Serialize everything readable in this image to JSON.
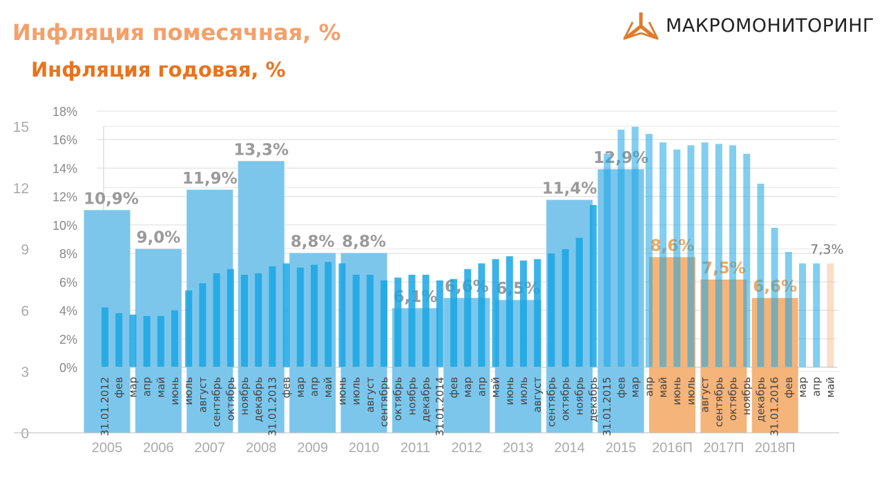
{
  "logo": {
    "text": "МАКРОМОНИТОРИНГ",
    "color": "#e07b2a"
  },
  "titles": {
    "annual": "Инфляция годовая, %",
    "monthly": "Инфляция помесячная, %"
  },
  "colors": {
    "actual": "#7cc6ec",
    "forecast": "#f5b47a",
    "monthly": "#1aa6e4",
    "monthly_forecast": "#f7c39a",
    "label": "#9a9a9a",
    "forecast_label": "#f0a860"
  },
  "chart_data": [
    {
      "type": "bar",
      "title": "Инфляция годовая, %",
      "ylim": [
        0,
        15
      ],
      "yticks": [
        "0",
        "3",
        "6",
        "9",
        "12",
        "15"
      ],
      "grid": true,
      "categories": [
        "2005",
        "2006",
        "2007",
        "2008",
        "2009",
        "2010",
        "2011",
        "2012",
        "2013",
        "2014",
        "2015",
        "2016П",
        "2017П",
        "2018П"
      ],
      "values": [
        10.9,
        9.0,
        11.9,
        13.3,
        8.8,
        8.8,
        6.1,
        6.6,
        6.5,
        11.4,
        12.9,
        8.6,
        7.5,
        6.6
      ],
      "labels": [
        "10,9%",
        "9,0%",
        "11,9%",
        "13,3%",
        "8,8%",
        "8,8%",
        "6,1%",
        "6,6%",
        "6,5%",
        "11,4%",
        "12,9%",
        "8,6%",
        "7,5%",
        "6,6%"
      ],
      "forecast": [
        false,
        false,
        false,
        false,
        false,
        false,
        false,
        false,
        false,
        false,
        false,
        true,
        true,
        true
      ]
    },
    {
      "type": "bar",
      "title": "Инфляция помесячная, %",
      "ylim": [
        0,
        18
      ],
      "yticks": [
        "0%",
        "2%",
        "4%",
        "6%",
        "8%",
        "10%",
        "12%",
        "14%",
        "16%",
        "18%"
      ],
      "grid": true,
      "categories": [
        "31.01.2012",
        "фев",
        "мар",
        "апр",
        "май",
        "июнь",
        "июль",
        "август",
        "сентябрь",
        "октябрь",
        "ноябрь",
        "декабрь",
        "31.01.2013",
        "фев",
        "мар",
        "апр",
        "май",
        "июнь",
        "июль",
        "август",
        "сентябрь",
        "октябрь",
        "ноябрь",
        "декабрь",
        "31.01.2014",
        "фев",
        "мар",
        "апр",
        "май",
        "июнь",
        "июль",
        "август",
        "сентябрь",
        "октябрь",
        "ноябрь",
        "декабрь",
        "31.01.2015",
        "фев",
        "мар",
        "апр",
        "май",
        "июнь",
        "июль",
        "август",
        "сентябрь",
        "октябрь",
        "ноябрь",
        "декабрь",
        "31.01.2016",
        "фев",
        "мар",
        "апр",
        "май"
      ],
      "values": [
        4.2,
        3.8,
        3.7,
        3.6,
        3.6,
        4.0,
        5.4,
        5.9,
        6.6,
        6.9,
        6.5,
        6.6,
        7.1,
        7.3,
        7.0,
        7.2,
        7.4,
        7.3,
        6.5,
        6.5,
        6.1,
        6.3,
        6.5,
        6.5,
        6.1,
        6.2,
        6.9,
        7.3,
        7.6,
        7.8,
        7.5,
        7.6,
        8.0,
        8.3,
        9.1,
        11.4,
        15.0,
        16.7,
        16.9,
        16.4,
        15.8,
        15.3,
        15.6,
        15.8,
        15.7,
        15.6,
        15.0,
        12.9,
        9.8,
        8.1,
        7.3,
        7.3,
        7.3
      ],
      "last_label": "7,3%"
    }
  ]
}
